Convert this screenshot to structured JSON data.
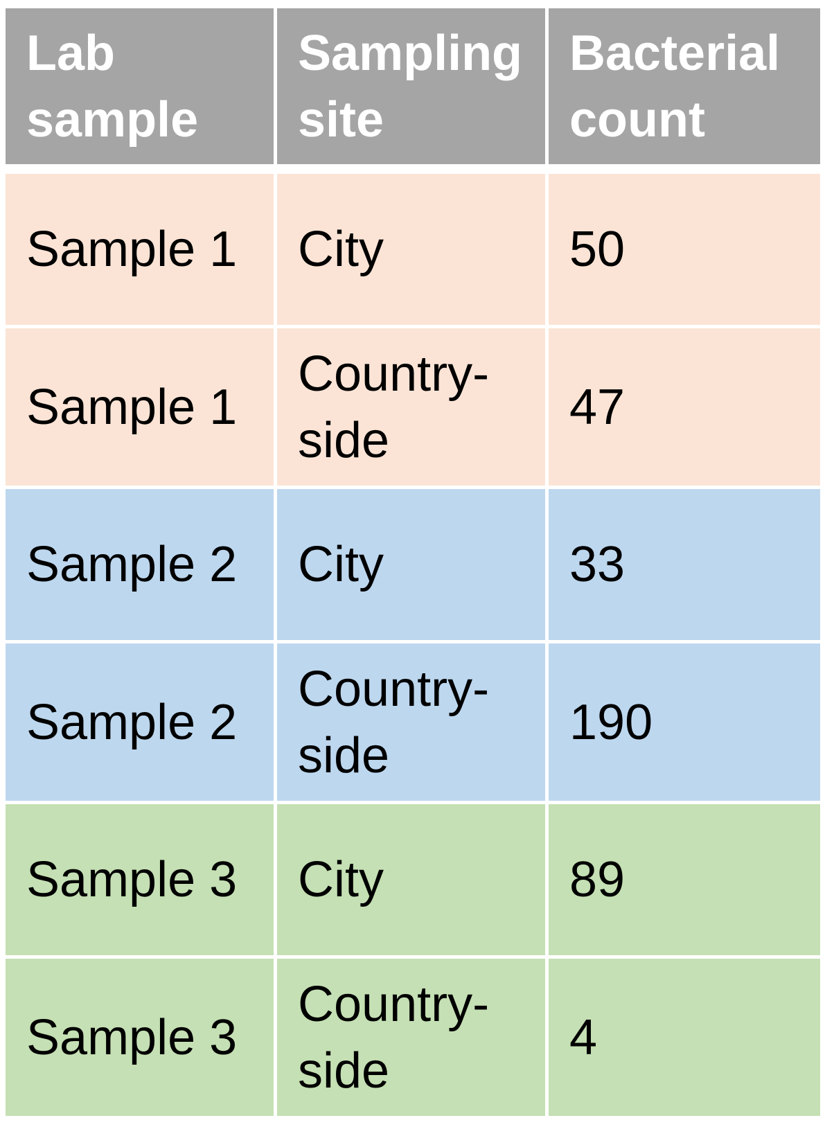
{
  "chart_data": {
    "type": "table",
    "columns": [
      "Lab sample",
      "Sampling site",
      "Bacterial count"
    ],
    "rows": [
      {
        "lab_sample": "Sample 1",
        "site": "City",
        "count": "50"
      },
      {
        "lab_sample": "Sample 1",
        "site": "Country-\nside",
        "count": "47"
      },
      {
        "lab_sample": "Sample 2",
        "site": "City",
        "count": "33"
      },
      {
        "lab_sample": "Sample 2",
        "site": "Country-\nside",
        "count": "190"
      },
      {
        "lab_sample": "Sample 3",
        "site": "City",
        "count": "89"
      },
      {
        "lab_sample": "Sample 3",
        "site": "Country-\nside",
        "count": "4"
      }
    ],
    "header_labels": [
      "Lab\nsample",
      "Sampling\nsite",
      "Bacterial\ncount"
    ]
  },
  "colors": {
    "header_bg": "#a5a5a5",
    "header_text": "#ffffff",
    "sample_1_bg": "#fbe4d6",
    "sample_2_bg": "#bdd7ee",
    "sample_3_bg": "#c5e0b4",
    "cell_text": "#000000",
    "grid_lines": "#ffffff"
  }
}
